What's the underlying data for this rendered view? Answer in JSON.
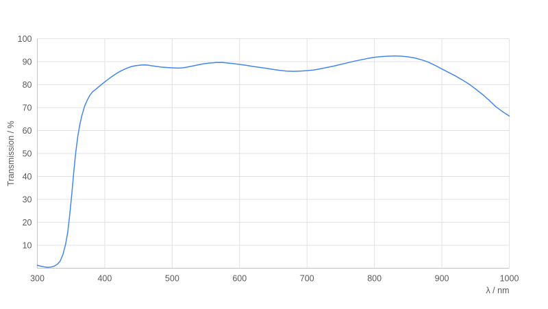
{
  "chart_data": {
    "type": "line",
    "title": "",
    "xlabel": "λ / nm",
    "ylabel": "Transmission / %",
    "xlim": [
      300,
      1000
    ],
    "ylim": [
      0,
      100
    ],
    "x_ticks": [
      300,
      400,
      500,
      600,
      700,
      800,
      900,
      1000
    ],
    "y_ticks": [
      10,
      20,
      30,
      40,
      50,
      60,
      70,
      80,
      90,
      100
    ],
    "grid": "on",
    "legend": "none",
    "colors": {
      "line": "#4285f4",
      "grid": "#e2e2e2",
      "axis": "#c2c2c2",
      "label": "#5a5a5a"
    },
    "series": [
      {
        "name": "Transmission",
        "points": [
          [
            300,
            1.3
          ],
          [
            305,
            0.9
          ],
          [
            310,
            0.6
          ],
          [
            315,
            0.4
          ],
          [
            320,
            0.5
          ],
          [
            325,
            0.9
          ],
          [
            330,
            1.8
          ],
          [
            334,
            3.2
          ],
          [
            338,
            6.0
          ],
          [
            342,
            10.5
          ],
          [
            345,
            15.5
          ],
          [
            348,
            23.0
          ],
          [
            351,
            32.0
          ],
          [
            354,
            42.0
          ],
          [
            357,
            50.5
          ],
          [
            360,
            57.5
          ],
          [
            363,
            62.5
          ],
          [
            366,
            66.5
          ],
          [
            370,
            70.5
          ],
          [
            374,
            73.2
          ],
          [
            378,
            75.4
          ],
          [
            382,
            76.9
          ],
          [
            386,
            77.8
          ],
          [
            390,
            78.8
          ],
          [
            395,
            80.0
          ],
          [
            400,
            81.2
          ],
          [
            405,
            82.3
          ],
          [
            410,
            83.4
          ],
          [
            415,
            84.4
          ],
          [
            420,
            85.3
          ],
          [
            425,
            86.1
          ],
          [
            430,
            86.8
          ],
          [
            435,
            87.4
          ],
          [
            440,
            87.9
          ],
          [
            445,
            88.2
          ],
          [
            450,
            88.4
          ],
          [
            455,
            88.55
          ],
          [
            460,
            88.6
          ],
          [
            465,
            88.45
          ],
          [
            470,
            88.2
          ],
          [
            475,
            88.0
          ],
          [
            480,
            87.8
          ],
          [
            485,
            87.6
          ],
          [
            490,
            87.5
          ],
          [
            495,
            87.4
          ],
          [
            500,
            87.3
          ],
          [
            505,
            87.25
          ],
          [
            510,
            87.2
          ],
          [
            515,
            87.3
          ],
          [
            520,
            87.5
          ],
          [
            525,
            87.8
          ],
          [
            530,
            88.1
          ],
          [
            535,
            88.4
          ],
          [
            540,
            88.7
          ],
          [
            545,
            89.0
          ],
          [
            550,
            89.2
          ],
          [
            555,
            89.4
          ],
          [
            560,
            89.5
          ],
          [
            565,
            89.6
          ],
          [
            570,
            89.65
          ],
          [
            575,
            89.6
          ],
          [
            580,
            89.5
          ],
          [
            585,
            89.35
          ],
          [
            590,
            89.2
          ],
          [
            595,
            89.0
          ],
          [
            600,
            88.8
          ],
          [
            610,
            88.4
          ],
          [
            620,
            87.9
          ],
          [
            630,
            87.5
          ],
          [
            640,
            87.1
          ],
          [
            650,
            86.6
          ],
          [
            660,
            86.2
          ],
          [
            670,
            85.9
          ],
          [
            680,
            85.8
          ],
          [
            690,
            85.9
          ],
          [
            700,
            86.1
          ],
          [
            710,
            86.4
          ],
          [
            720,
            86.9
          ],
          [
            730,
            87.5
          ],
          [
            740,
            88.1
          ],
          [
            750,
            88.8
          ],
          [
            760,
            89.5
          ],
          [
            770,
            90.2
          ],
          [
            780,
            90.8
          ],
          [
            790,
            91.4
          ],
          [
            800,
            91.9
          ],
          [
            810,
            92.2
          ],
          [
            820,
            92.4
          ],
          [
            830,
            92.5
          ],
          [
            840,
            92.4
          ],
          [
            850,
            92.1
          ],
          [
            860,
            91.6
          ],
          [
            870,
            90.8
          ],
          [
            880,
            89.8
          ],
          [
            890,
            88.4
          ],
          [
            900,
            86.8
          ],
          [
            910,
            85.3
          ],
          [
            920,
            83.8
          ],
          [
            930,
            82.1
          ],
          [
            940,
            80.3
          ],
          [
            950,
            78.1
          ],
          [
            960,
            75.8
          ],
          [
            970,
            73.2
          ],
          [
            980,
            70.4
          ],
          [
            990,
            68.2
          ],
          [
            1000,
            66.3
          ]
        ]
      }
    ]
  }
}
